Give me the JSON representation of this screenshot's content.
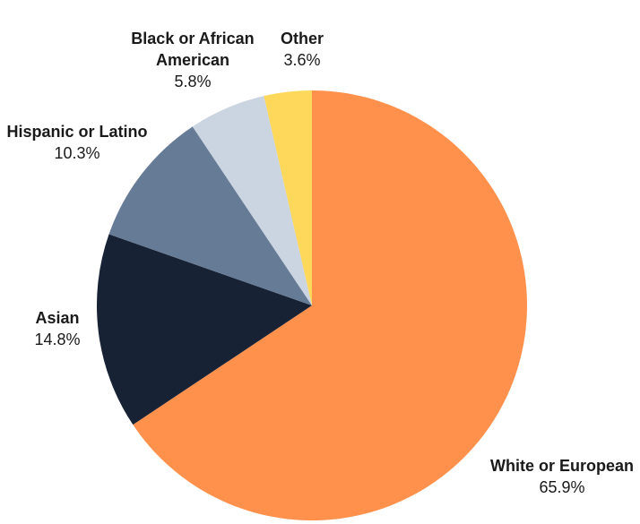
{
  "chart_data": {
    "type": "pie",
    "slices": [
      {
        "label_lines": [
          "White or European"
        ],
        "value": 65.9,
        "value_label": "65.9%",
        "color": "#ff914d"
      },
      {
        "label_lines": [
          "Asian"
        ],
        "value": 14.8,
        "value_label": "14.8%",
        "color": "#182235"
      },
      {
        "label_lines": [
          "Hispanic or Latino"
        ],
        "value": 10.3,
        "value_label": "10.3%",
        "color": "#667b96"
      },
      {
        "label_lines": [
          "Black or African",
          "American"
        ],
        "value": 5.8,
        "value_label": "5.8%",
        "color": "#cbd5e1"
      },
      {
        "label_lines": [
          "Other"
        ],
        "value": 3.6,
        "value_label": "3.6%",
        "color": "#fdd85b"
      }
    ],
    "start": "12 o'clock",
    "direction": "clockwise",
    "legend": "none",
    "labels": "outside"
  }
}
